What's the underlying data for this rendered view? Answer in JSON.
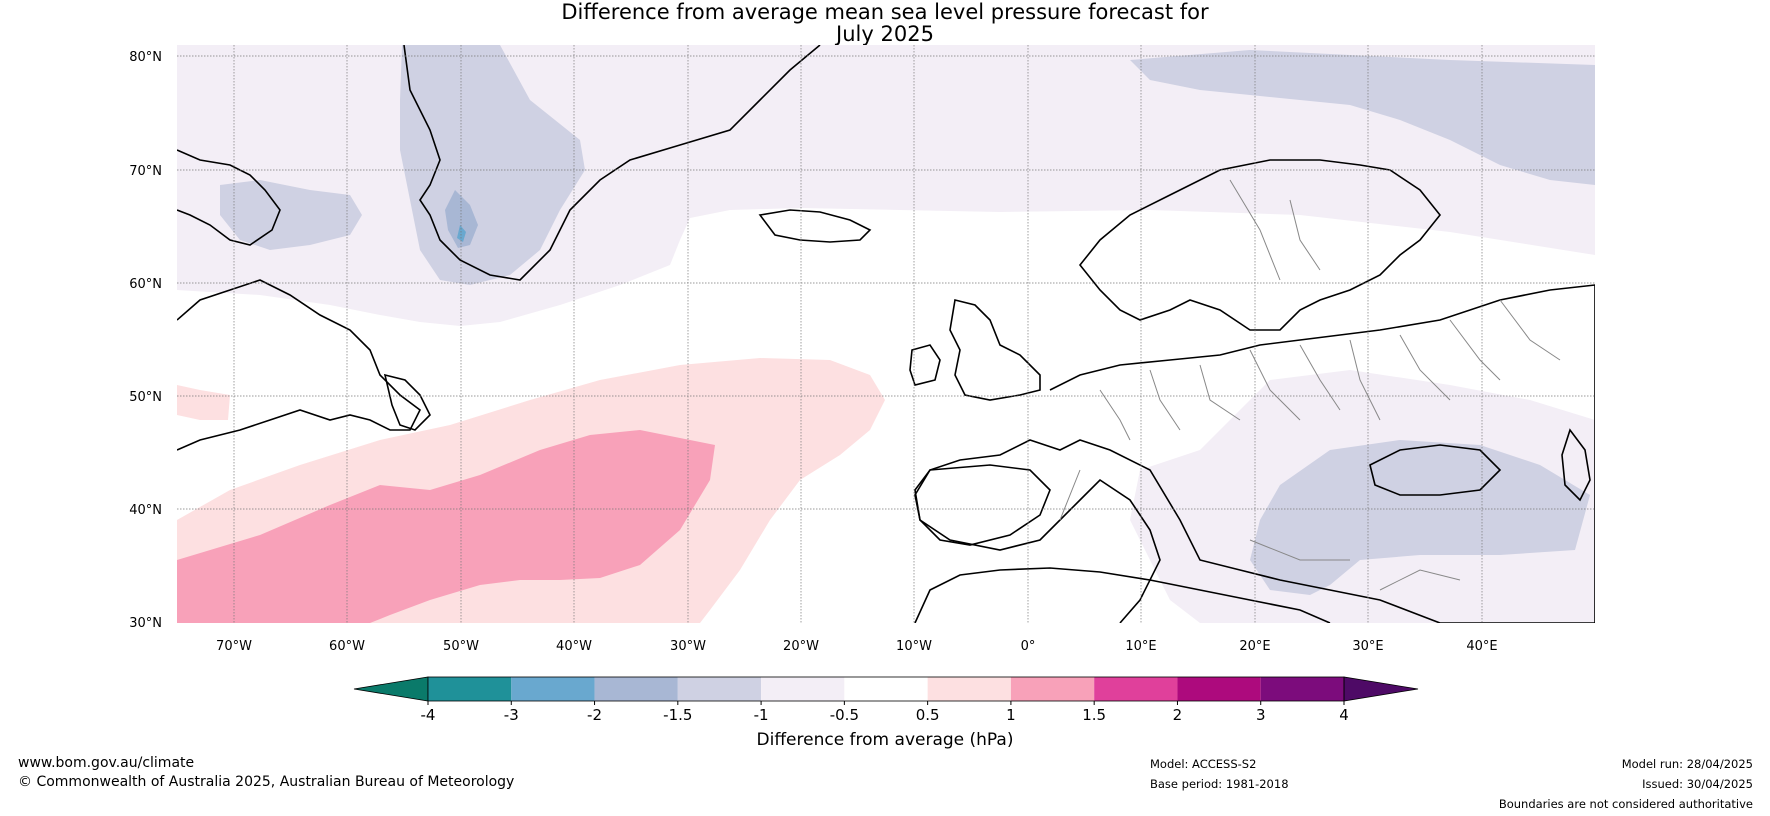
{
  "title": {
    "line1": "Difference from average mean sea level pressure forecast for",
    "line2": "July 2025"
  },
  "map": {
    "lat_labels": [
      "80°N",
      "70°N",
      "60°N",
      "50°N",
      "40°N",
      "30°N"
    ],
    "lon_labels": [
      "70°W",
      "60°W",
      "50°W",
      "40°W",
      "30°W",
      "20°W",
      "10°W",
      "0°",
      "10°E",
      "20°E",
      "30°E",
      "40°E"
    ]
  },
  "colorbar": {
    "tick_labels": [
      "-4",
      "-3",
      "-2",
      "-1.5",
      "-1",
      "-0.5",
      "0.5",
      "1",
      "1.5",
      "2",
      "3",
      "4"
    ],
    "colors": [
      "#0a7a6a",
      "#1f9199",
      "#69a8cf",
      "#a8b7d4",
      "#cfd1e3",
      "#f3eef6",
      "#ffffff",
      "#fde0e1",
      "#f8a1b9",
      "#e0409b",
      "#ad0a7d",
      "#7c0c7c",
      "#4e0a66"
    ],
    "title": "Difference from average (hPa)"
  },
  "footer": {
    "url": "www.bom.gov.au/climate",
    "copyright": "© Commonwealth of Australia 2025, Australian Bureau of Meteorology",
    "model": "Model: ACCESS-S2",
    "base_period": "Base period: 1981-2018",
    "model_run": "Model run: 28/04/2025",
    "issued": "Issued: 30/04/2025",
    "disclaimer": "Boundaries are not considered authoritative"
  }
}
